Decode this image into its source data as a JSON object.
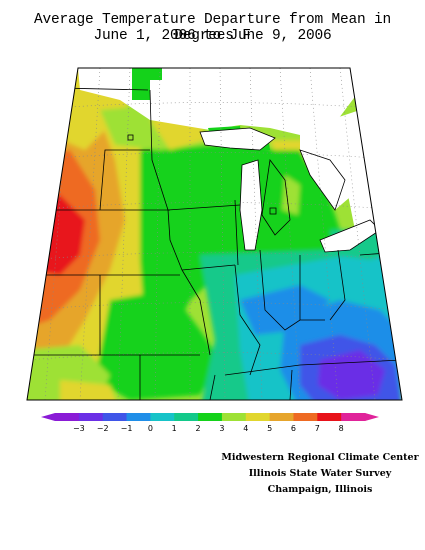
{
  "title": {
    "line1": "Average Temperature Departure from Mean in Degrees F",
    "line2": "June 1, 2006 to June 9, 2006"
  },
  "legend": {
    "ticks": [
      "−3",
      "−2",
      "−1",
      "0",
      "1",
      "2",
      "3",
      "4",
      "5",
      "6",
      "7",
      "8"
    ],
    "colors": [
      "#8a1bd6",
      "#6b2fe6",
      "#3f55e8",
      "#1f8ee8",
      "#17c3c8",
      "#13c98a",
      "#14d21a",
      "#9ee135",
      "#e1d62e",
      "#e6a52c",
      "#ee6a22",
      "#e8121a",
      "#e0239a"
    ]
  },
  "credits": {
    "line1": "Midwestern Regional Climate Center",
    "line2": "Illinois State Water Survey",
    "line3": "Champaign, Illinois"
  }
}
